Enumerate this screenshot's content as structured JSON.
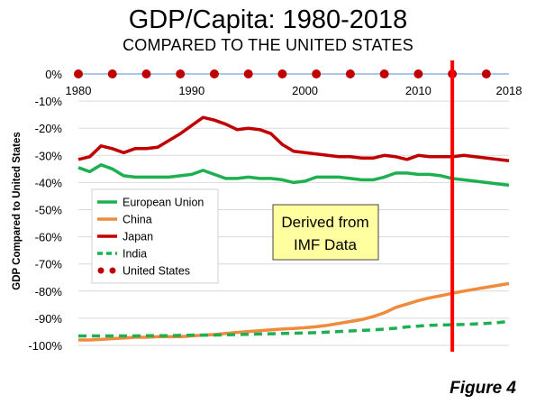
{
  "title": "GDP/Capita: 1980-2018",
  "subtitle": "COMPARED TO THE UNITED STATES",
  "figure_label": "Figure 4",
  "annotation": [
    "Derived from",
    "IMF Data"
  ],
  "chart_data": {
    "type": "line",
    "title": "GDP/Capita: 1980-2018",
    "subtitle": "COMPARED TO THE UNITED STATES",
    "xlabel": "",
    "ylabel": "GDP Compared to United States",
    "xlim": [
      1980,
      2018
    ],
    "ylim": [
      -100,
      0
    ],
    "x_tick_labels": [
      "1980",
      "1990",
      "2000",
      "2010",
      "2018"
    ],
    "y_tick_labels": [
      "0%",
      "-10%",
      "-20%",
      "-30%",
      "-40%",
      "-50%",
      "-60%",
      "-70%",
      "-80%",
      "-90%",
      "-100%"
    ],
    "grid": "horizontal",
    "legend_placement": "left-middle",
    "marker_line_year": 2013,
    "x": [
      1980,
      1981,
      1982,
      1983,
      1984,
      1985,
      1986,
      1987,
      1988,
      1989,
      1990,
      1991,
      1992,
      1993,
      1994,
      1995,
      1996,
      1997,
      1998,
      1999,
      2000,
      2001,
      2002,
      2003,
      2004,
      2005,
      2006,
      2007,
      2008,
      2009,
      2010,
      2011,
      2012,
      2013,
      2014,
      2015,
      2016,
      2017,
      2018
    ],
    "series": [
      {
        "name": "European Union",
        "color": "#1eb050",
        "style": "solid",
        "values": [
          -34.5,
          -36,
          -33.5,
          -35,
          -37.5,
          -38,
          -38,
          -38,
          -38,
          -37.5,
          -37,
          -35.5,
          -37,
          -38.5,
          -38.5,
          -38,
          -38.5,
          -38.5,
          -39,
          -40,
          -39.5,
          -38,
          -38,
          -38,
          -38.5,
          -39,
          -39,
          -38,
          -36.5,
          -36.5,
          -37,
          -37,
          -37.5,
          -38.5,
          -39,
          -39.5,
          -40,
          -40.5,
          -41
        ]
      },
      {
        "name": "China",
        "color": "#f08a3c",
        "style": "solid",
        "values": [
          -98,
          -98,
          -97.8,
          -97.5,
          -97.3,
          -97,
          -97,
          -96.8,
          -96.8,
          -96.8,
          -96.5,
          -96.2,
          -96,
          -95.6,
          -95.2,
          -94.9,
          -94.6,
          -94.3,
          -94,
          -93.8,
          -93.5,
          -93.1,
          -92.6,
          -91.9,
          -91.2,
          -90.5,
          -89.4,
          -88,
          -86,
          -84.8,
          -83.5,
          -82.5,
          -81.7,
          -80.8,
          -80,
          -79.3,
          -78.6,
          -77.9,
          -77.2
        ]
      },
      {
        "name": "Japan",
        "color": "#c00000",
        "style": "solid",
        "values": [
          -31.5,
          -30.5,
          -26.5,
          -27.5,
          -29,
          -27.5,
          -27.5,
          -27,
          -24.5,
          -22,
          -19,
          -16,
          -17,
          -18.5,
          -20.5,
          -20,
          -20.5,
          -22,
          -26,
          -28.5,
          -29,
          -29.5,
          -30,
          -30.5,
          -30.5,
          -31,
          -31,
          -30,
          -30.5,
          -31.5,
          -30,
          -30.5,
          -30.5,
          -30.5,
          -30,
          -30.5,
          -31,
          -31.5,
          -32
        ]
      },
      {
        "name": "India",
        "color": "#1eb050",
        "style": "dashed",
        "values": [
          -96.5,
          -96.5,
          -96.5,
          -96.5,
          -96.5,
          -96.5,
          -96.4,
          -96.4,
          -96.4,
          -96.3,
          -96.2,
          -96.2,
          -96.2,
          -96.1,
          -96,
          -95.9,
          -95.8,
          -95.7,
          -95.6,
          -95.5,
          -95.4,
          -95.3,
          -95.1,
          -94.9,
          -94.7,
          -94.5,
          -94.3,
          -94,
          -93.7,
          -93.2,
          -92.9,
          -92.6,
          -92.5,
          -92.4,
          -92.3,
          -92.1,
          -91.9,
          -91.6,
          -91.2
        ]
      },
      {
        "name": "United States",
        "color": "#c00000",
        "style": "dots",
        "values": [
          0,
          0,
          0,
          0,
          0,
          0,
          0,
          0,
          0,
          0,
          0,
          0,
          0,
          0,
          0,
          0,
          0,
          0,
          0,
          0,
          0,
          0,
          0,
          0,
          0,
          0,
          0,
          0,
          0,
          0,
          0,
          0,
          0,
          0,
          0,
          0,
          0,
          0,
          0
        ]
      }
    ]
  }
}
